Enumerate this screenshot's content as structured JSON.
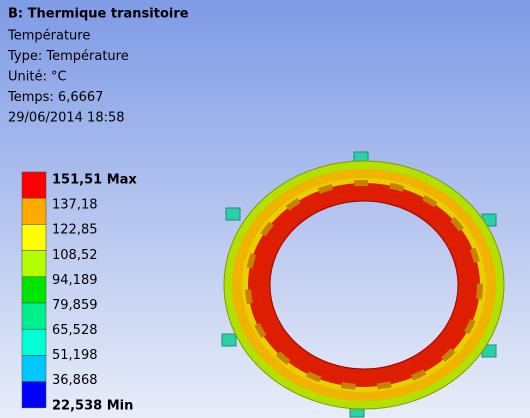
{
  "header": {
    "title": "B: Thermique transitoire",
    "lines": [
      "Température",
      "Type: Température",
      "Unité: °C",
      "Temps: 6,6667",
      "29/06/2014 18:58"
    ]
  },
  "legend": {
    "labels": [
      "151,51 Max",
      "137,18",
      "122,85",
      "108,52",
      "94,189",
      "79,859",
      "65,528",
      "51,198",
      "36,868",
      "22,538 Min"
    ],
    "colors": [
      "#ff0000",
      "#ffaa00",
      "#ffff00",
      "#b4ff00",
      "#00e600",
      "#00f08c",
      "#00ffd2",
      "#00c8ff",
      "#0000ff"
    ]
  }
}
